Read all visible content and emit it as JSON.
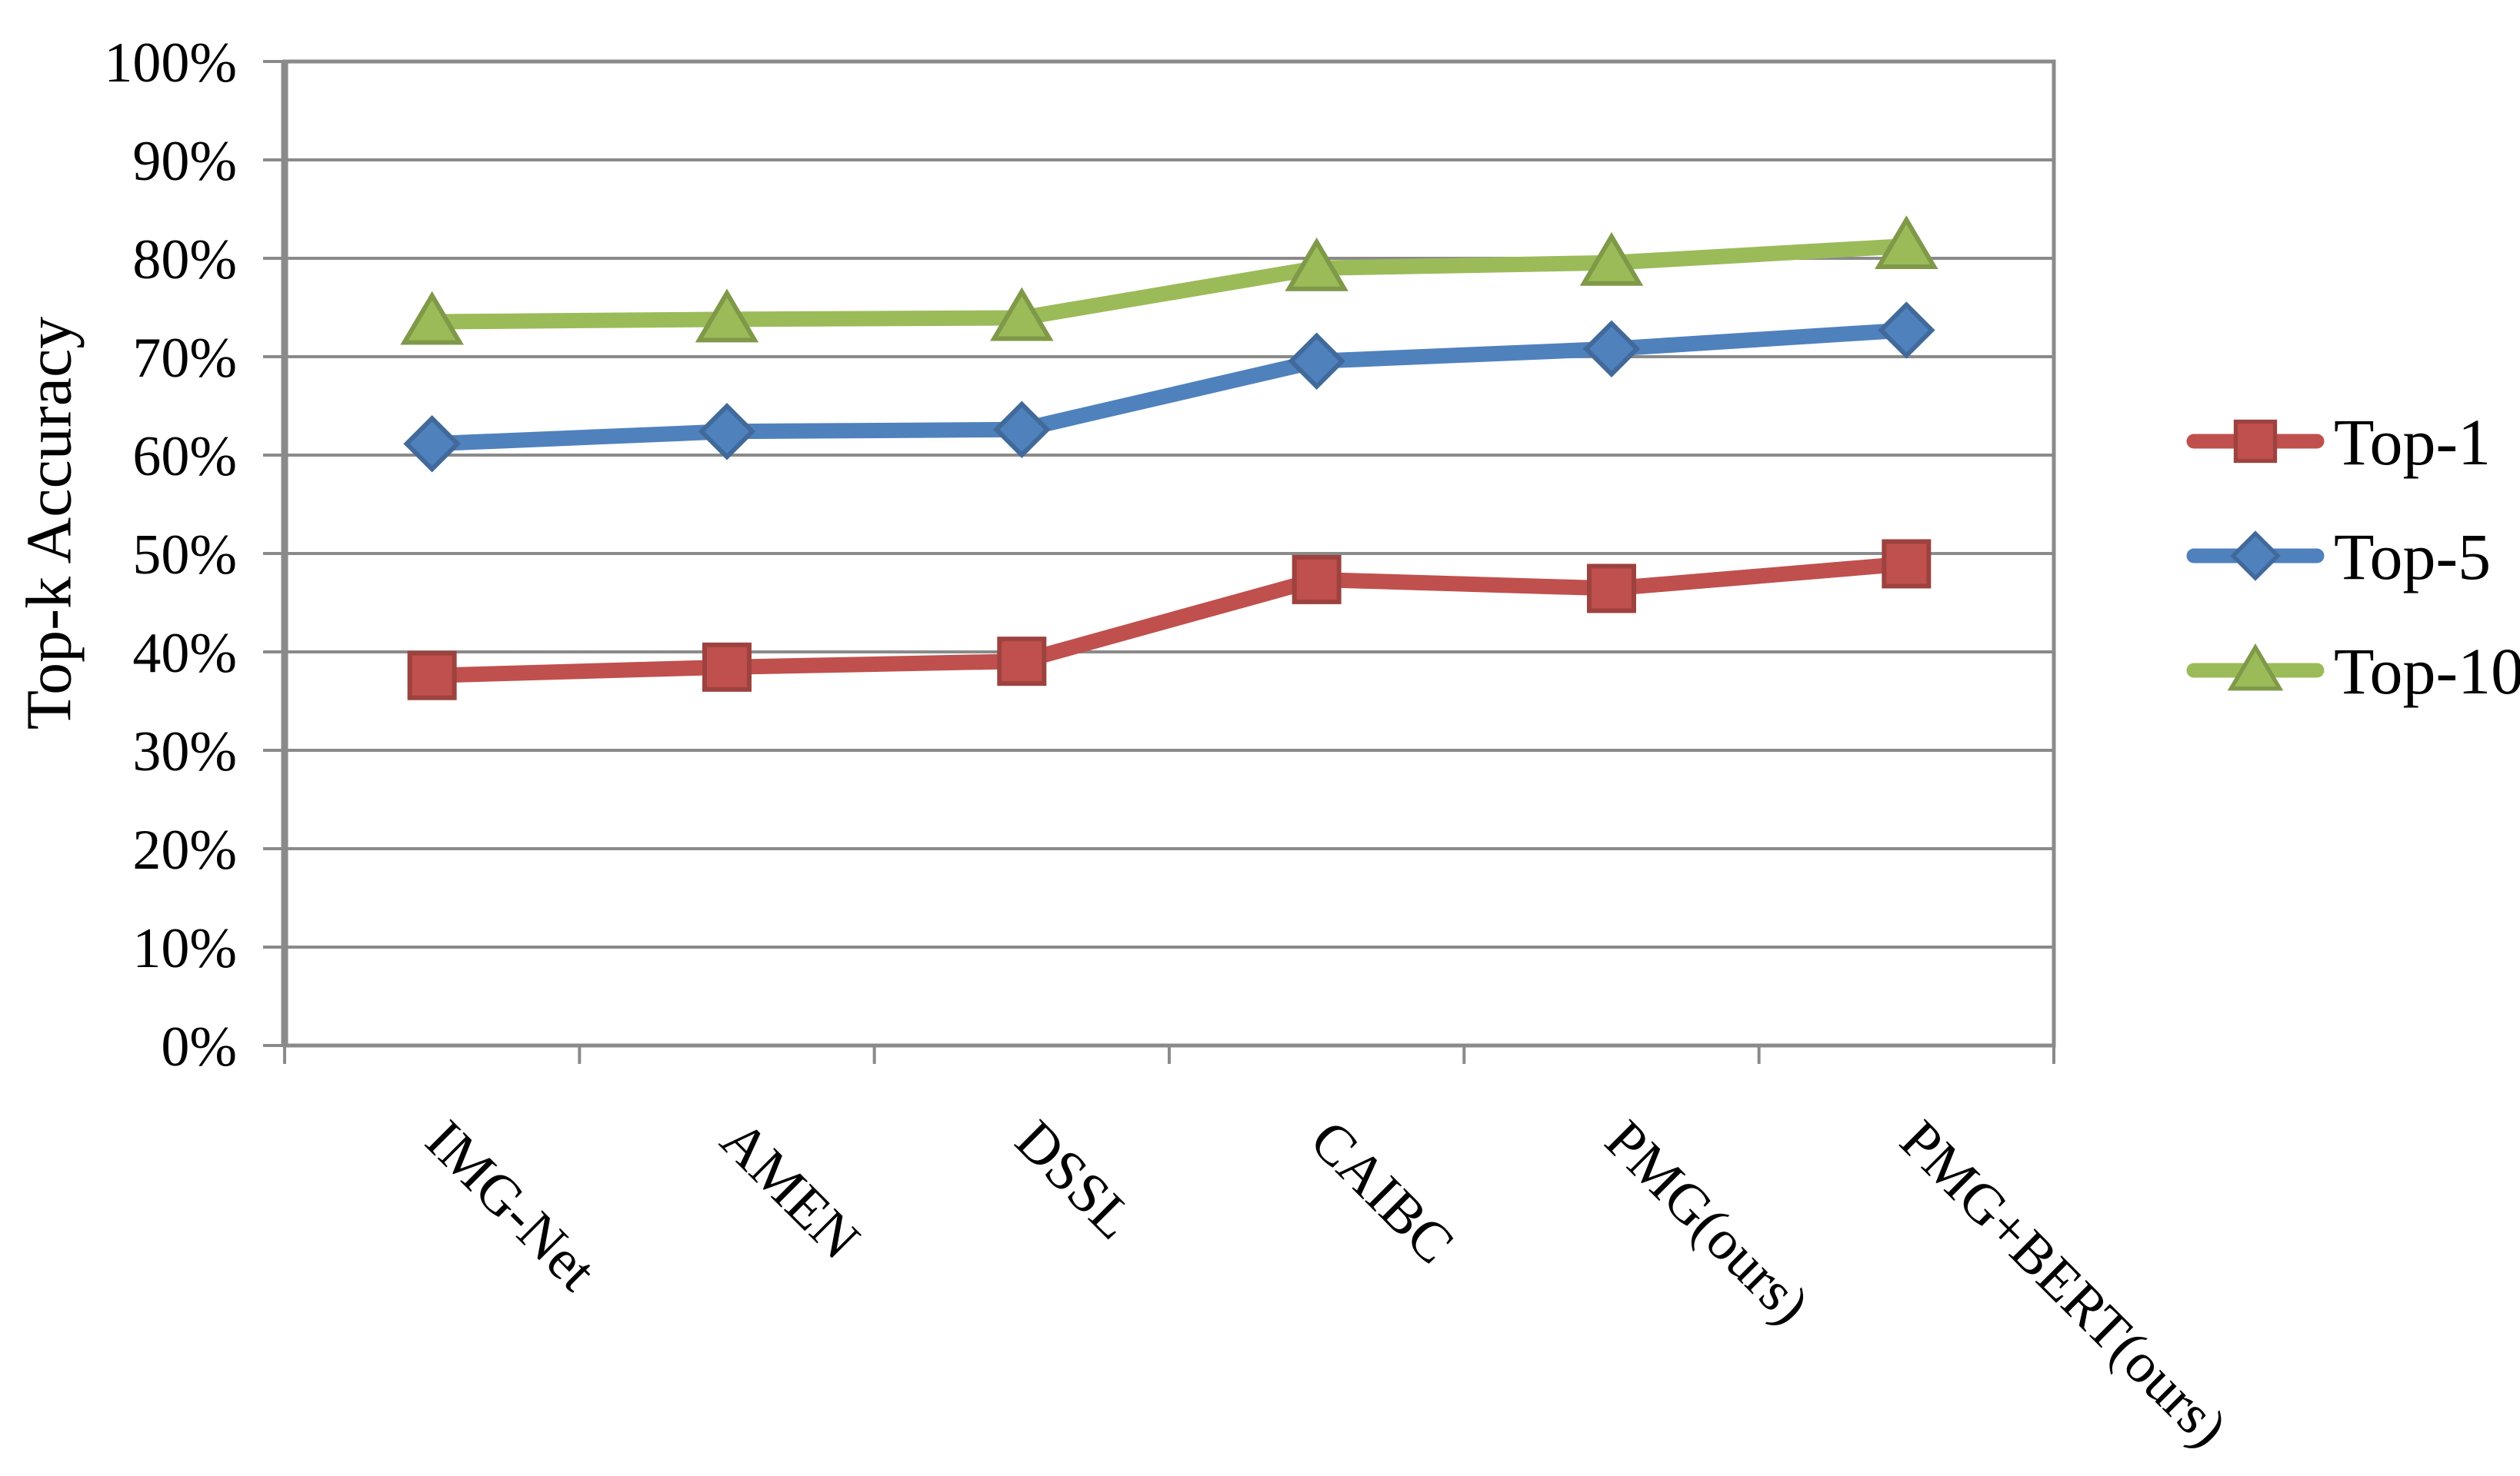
{
  "figure": {
    "background": "#ffffff",
    "text_color": "#000000",
    "gridline_color": "#8a8a8a",
    "axis_color": "#8a8a8a"
  },
  "chart_data": {
    "type": "line",
    "title": "",
    "xlabel": "",
    "ylabel": "Top-k Accuracy",
    "categories": [
      "IMG-Net",
      "AMEN",
      "DSSL",
      "CAIBC",
      "PMG(ours)",
      "PMG+BERT(ours)"
    ],
    "series": [
      {
        "name": "Top-1",
        "marker": "square",
        "color": "#c0504d",
        "values": [
          37.6,
          38.45,
          39.05,
          47.35,
          46.45,
          48.95
        ]
      },
      {
        "name": "Top-5",
        "marker": "diamond",
        "color": "#4f81bd",
        "values": [
          61.15,
          62.4,
          62.6,
          69.55,
          70.8,
          72.7
        ]
      },
      {
        "name": "Top-10",
        "marker": "triangle",
        "color": "#9bbb59",
        "values": [
          73.55,
          73.8,
          73.95,
          79.0,
          79.55,
          81.25
        ]
      }
    ],
    "ylim": [
      0,
      100
    ],
    "ytick_step": 10,
    "ytick_labels": [
      "0%",
      "10%",
      "20%",
      "30%",
      "40%",
      "50%",
      "60%",
      "70%",
      "80%",
      "90%",
      "100%"
    ],
    "grid": true,
    "legend_position": "right",
    "legend_items": [
      "Top-1",
      "Top-5",
      "Top-10"
    ]
  }
}
